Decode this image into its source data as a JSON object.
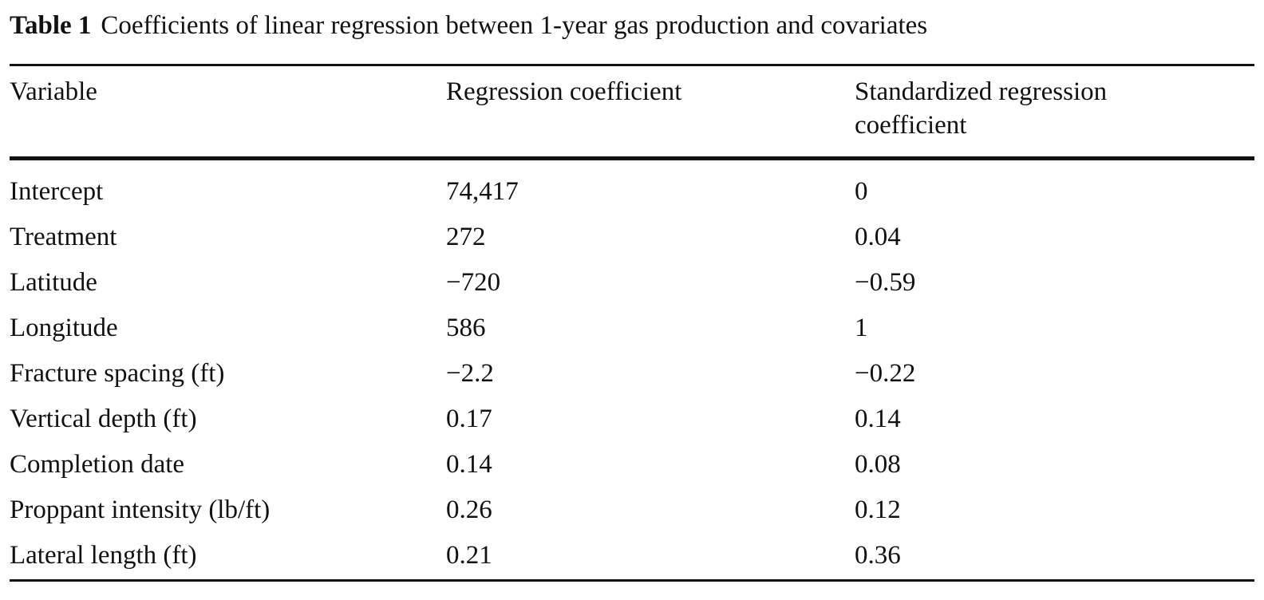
{
  "caption": {
    "label": "Table 1",
    "text": "Coefficients of linear regression between 1-year gas production and covariates"
  },
  "table": {
    "headers": {
      "variable": "Variable",
      "regression": "Regression coefficient",
      "standardized": "Standardized regression coefficient"
    },
    "rows": [
      {
        "variable": "Intercept",
        "regression": "74,417",
        "standardized": "0"
      },
      {
        "variable": "Treatment",
        "regression": "272",
        "standardized": "0.04"
      },
      {
        "variable": "Latitude",
        "regression": "−720",
        "standardized": "−0.59"
      },
      {
        "variable": "Longitude",
        "regression": "586",
        "standardized": "1"
      },
      {
        "variable": "Fracture spacing (ft)",
        "regression": "−2.2",
        "standardized": "−0.22"
      },
      {
        "variable": "Vertical depth (ft)",
        "regression": "0.17",
        "standardized": "0.14"
      },
      {
        "variable": "Completion date",
        "regression": "0.14",
        "standardized": "0.08"
      },
      {
        "variable": "Proppant intensity (lb/ft)",
        "regression": "0.26",
        "standardized": "0.12"
      },
      {
        "variable": "Lateral length (ft)",
        "regression": "0.21",
        "standardized": "0.36"
      }
    ]
  }
}
